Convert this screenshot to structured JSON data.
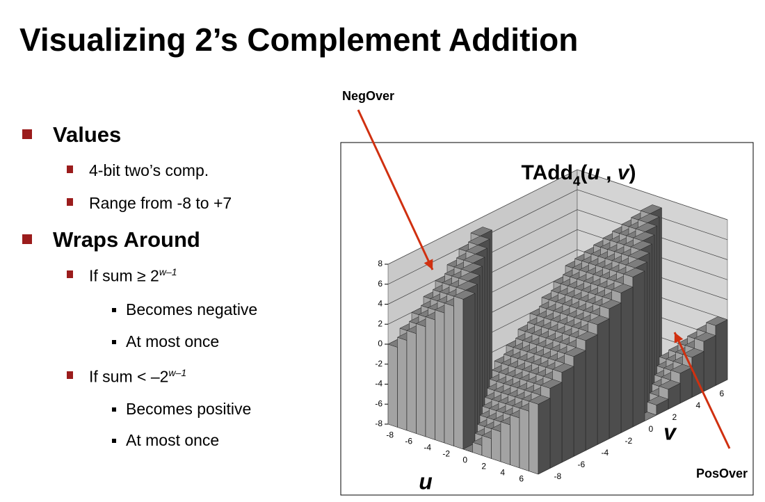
{
  "header": {
    "title": "Visualizing 2’s Complement Addition"
  },
  "bullets": [
    {
      "text": "Values",
      "items": [
        {
          "text": "4-bit two’s comp."
        },
        {
          "text": "Range from -8 to +7"
        }
      ]
    },
    {
      "text": "Wraps Around",
      "items": [
        {
          "text": "If sum ≥ 2",
          "sup": "w–1",
          "items": [
            "Becomes negative",
            "At most once"
          ]
        },
        {
          "text": "If sum < –2",
          "sup": "w–1",
          "items": [
            "Becomes positive",
            "At most once"
          ]
        }
      ]
    }
  ],
  "chart_data": {
    "type": "bar3d",
    "title": "TAdd",
    "title_subscript": "4",
    "title_args": [
      "(",
      "u",
      " , ",
      "v",
      ")"
    ],
    "x_label": "u",
    "y_label": "v",
    "x": [
      -8,
      -7,
      -6,
      -5,
      -4,
      -3,
      -2,
      -1,
      0,
      1,
      2,
      3,
      4,
      5,
      6,
      7
    ],
    "y": [
      -8,
      -7,
      -6,
      -5,
      -4,
      -3,
      -2,
      -1,
      0,
      1,
      2,
      3,
      4,
      5,
      6,
      7
    ],
    "values": [
      [
        0,
        1,
        2,
        3,
        4,
        5,
        6,
        7,
        -8,
        -7,
        -6,
        -5,
        -4,
        -3,
        -2,
        -1
      ],
      [
        1,
        2,
        3,
        4,
        5,
        6,
        7,
        -8,
        -7,
        -6,
        -5,
        -4,
        -3,
        -2,
        -1,
        0
      ],
      [
        2,
        3,
        4,
        5,
        6,
        7,
        -8,
        -7,
        -6,
        -5,
        -4,
        -3,
        -2,
        -1,
        0,
        1
      ],
      [
        3,
        4,
        5,
        6,
        7,
        -8,
        -7,
        -6,
        -5,
        -4,
        -3,
        -2,
        -1,
        0,
        1,
        2
      ],
      [
        4,
        5,
        6,
        7,
        -8,
        -7,
        -6,
        -5,
        -4,
        -3,
        -2,
        -1,
        0,
        1,
        2,
        3
      ],
      [
        5,
        6,
        7,
        -8,
        -7,
        -6,
        -5,
        -4,
        -3,
        -2,
        -1,
        0,
        1,
        2,
        3,
        4
      ],
      [
        6,
        7,
        -8,
        -7,
        -6,
        -5,
        -4,
        -3,
        -2,
        -1,
        0,
        1,
        2,
        3,
        4,
        5
      ],
      [
        7,
        -8,
        -7,
        -6,
        -5,
        -4,
        -3,
        -2,
        -1,
        0,
        1,
        2,
        3,
        4,
        5,
        6
      ],
      [
        -8,
        -7,
        -6,
        -5,
        -4,
        -3,
        -2,
        -1,
        0,
        1,
        2,
        3,
        4,
        5,
        6,
        7
      ],
      [
        -7,
        -6,
        -5,
        -4,
        -3,
        -2,
        -1,
        0,
        1,
        2,
        3,
        4,
        5,
        6,
        7,
        -8
      ],
      [
        -6,
        -5,
        -4,
        -3,
        -2,
        -1,
        0,
        1,
        2,
        3,
        4,
        5,
        6,
        7,
        -8,
        -7
      ],
      [
        -5,
        -4,
        -3,
        -2,
        -1,
        0,
        1,
        2,
        3,
        4,
        5,
        6,
        7,
        -8,
        -7,
        -6
      ],
      [
        -4,
        -3,
        -2,
        -1,
        0,
        1,
        2,
        3,
        4,
        5,
        6,
        7,
        -8,
        -7,
        -6,
        -5
      ],
      [
        -3,
        -2,
        -1,
        0,
        1,
        2,
        3,
        4,
        5,
        6,
        7,
        -8,
        -7,
        -6,
        -5,
        -4
      ],
      [
        -2,
        -1,
        0,
        1,
        2,
        3,
        4,
        5,
        6,
        7,
        -8,
        -7,
        -6,
        -5,
        -4,
        -3
      ],
      [
        -1,
        0,
        1,
        2,
        3,
        4,
        5,
        6,
        7,
        -8,
        -7,
        -6,
        -5,
        -4,
        -3,
        -2
      ]
    ],
    "xlim": [
      -8,
      8
    ],
    "ylim": [
      -8,
      8
    ],
    "zlim": [
      -8,
      8
    ],
    "xticks": [
      -8,
      -6,
      -4,
      -2,
      0,
      2,
      4,
      6
    ],
    "yticks": [
      -8,
      -6,
      -4,
      -2,
      0,
      2,
      4,
      6
    ],
    "zticks": [
      -8,
      -6,
      -4,
      -2,
      0,
      2,
      4,
      6,
      8
    ],
    "grid": true,
    "colors": {
      "front": "#a3a3a3",
      "side": "#4d4d4d",
      "top": "#7d7d7d"
    },
    "annotations": [
      {
        "text": "NegOver"
      },
      {
        "text": "PosOver"
      }
    ]
  }
}
